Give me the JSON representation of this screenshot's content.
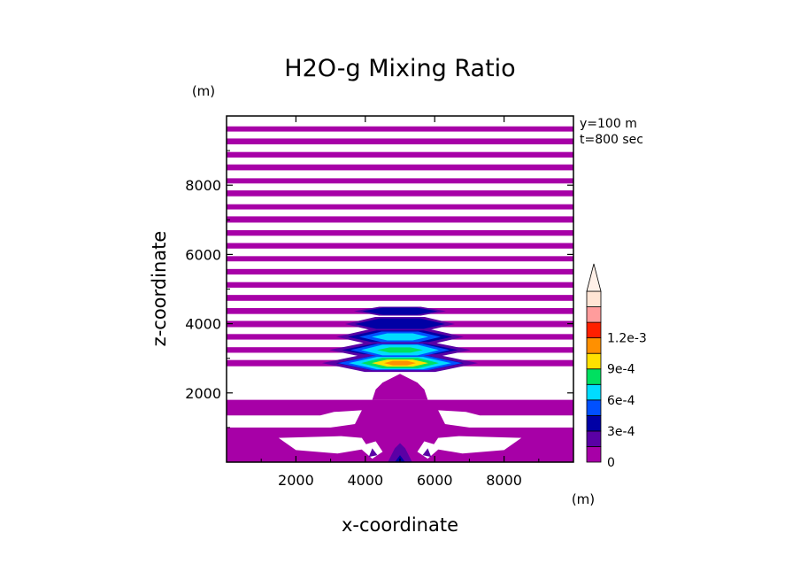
{
  "chart_data": {
    "type": "heatmap",
    "title": "H2O-g Mixing Ratio",
    "xlabel": "x-coordinate",
    "ylabel": "z-coordinate",
    "x_unit": "(m)",
    "y_unit": "(m)",
    "annotations": [
      "y=100 m",
      "t=800 sec"
    ],
    "xlim": [
      0,
      10000
    ],
    "ylim": [
      0,
      10000
    ],
    "x_ticks": [
      2000,
      4000,
      6000,
      8000
    ],
    "y_ticks": [
      2000,
      4000,
      6000,
      8000
    ],
    "x_tick_labels": [
      "2000",
      "4000",
      "6000",
      "8000"
    ],
    "y_tick_labels": [
      "2000",
      "4000",
      "6000",
      "8000"
    ],
    "colorbar": {
      "levels": [
        0,
        0.00015,
        0.0003,
        0.00045,
        0.0006,
        0.00075,
        0.0009,
        0.00105,
        0.0012,
        0.00135
      ],
      "colors": [
        "#a700a7",
        "#5a00a5",
        "#0000a5",
        "#0050ff",
        "#00dcff",
        "#00e060",
        "#ffe000",
        "#ff9000",
        "#ff2000",
        "#ff9c9c",
        "#ffe4d4"
      ],
      "tick_values": [
        0,
        0.0003,
        0.0006,
        0.0009,
        0.0012
      ],
      "tick_labels": [
        "0",
        "3e-4",
        "6e-4",
        "9e-4",
        "1.2e-3"
      ],
      "extend": "max"
    },
    "field": {
      "description_free": true,
      "upper_bands": [
        {
          "z0": 9700,
          "z1": 9550
        },
        {
          "z0": 9350,
          "z1": 9180
        },
        {
          "z0": 8960,
          "z1": 8800
        },
        {
          "z0": 8600,
          "z1": 8430
        },
        {
          "z0": 8200,
          "z1": 8050
        },
        {
          "z0": 7850,
          "z1": 7680
        },
        {
          "z0": 7450,
          "z1": 7300
        },
        {
          "z0": 7100,
          "z1": 6920
        },
        {
          "z0": 6700,
          "z1": 6540
        },
        {
          "z0": 6330,
          "z1": 6170
        },
        {
          "z0": 5950,
          "z1": 5800
        },
        {
          "z0": 5580,
          "z1": 5420
        },
        {
          "z0": 5200,
          "z1": 5040
        },
        {
          "z0": 4830,
          "z1": 4660
        },
        {
          "z0": 4450,
          "z1": 4280
        },
        {
          "z0": 4080,
          "z1": 3900
        },
        {
          "z0": 3700,
          "z1": 3540
        },
        {
          "z0": 3320,
          "z1": 3160
        },
        {
          "z0": 2950,
          "z1": 2770
        }
      ],
      "core": {
        "x": 5000,
        "z": 2950,
        "max_value": 0.00105
      }
    }
  }
}
